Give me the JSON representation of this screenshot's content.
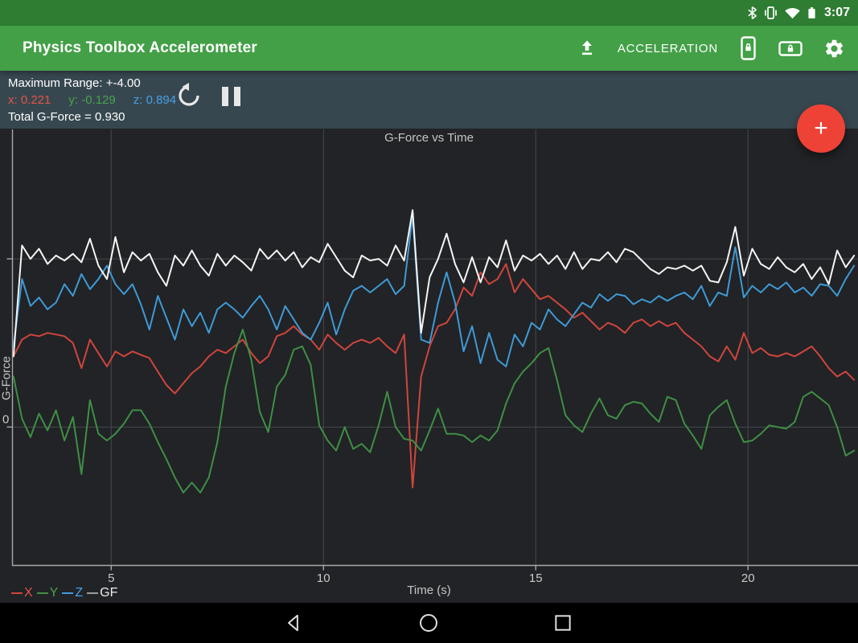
{
  "status_bar": {
    "time": "3:07",
    "icons": [
      "bluetooth-icon",
      "vibrate-icon",
      "wifi-icon",
      "battery-icon"
    ]
  },
  "app_bar": {
    "title": "Physics Toolbox Accelerometer",
    "mode_label": "ACCELERATION",
    "icons": [
      "upload-icon",
      "screen-lock-portrait-icon",
      "screen-lock-landscape-icon",
      "settings-gear-icon"
    ]
  },
  "sensor_bar": {
    "max_range": "Maximum Range: +-4.00",
    "x": "x: 0.221",
    "y": "y: -0.129",
    "z": "z: 0.894",
    "total": "Total G-Force = 0.930",
    "controls": [
      "reset-icon",
      "pause-icon"
    ]
  },
  "fab": {
    "glyph": "+"
  },
  "colors": {
    "status_bar_bg": "#2e7d32",
    "app_bar_bg": "#43a047",
    "sensor_bar_bg": "#37474f",
    "chart_bg": "#212326",
    "fab_bg": "#ee4236",
    "x_text": "#e25549",
    "y_text": "#4aa24e",
    "z_text": "#47a0ea",
    "gridline": "#46494d",
    "axis": "#a8a8a8",
    "tick_text": "#c9c9c9"
  },
  "chart_data": {
    "type": "line",
    "title": "G-Force vs Time",
    "xlabel": "Time (s)",
    "ylabel": "G-Force",
    "xlim": [
      2.675,
      22.59
    ],
    "ylim": [
      -0.823,
      1.77
    ],
    "grid": true,
    "legend_position": "bottom-left",
    "x_ticks": [
      5,
      10,
      15,
      20
    ],
    "x_tick_labels": [
      "5",
      "10",
      "15",
      "20"
    ],
    "y_gridlines": [
      0,
      1
    ],
    "y_tick_labels": [
      {
        "value": 0,
        "label": "0"
      }
    ],
    "series": [
      {
        "name": "X",
        "color": "#d0453c",
        "label_color": "#e25549",
        "t0": 2.7,
        "dt": 0.2,
        "values": [
          0.42,
          0.52,
          0.55,
          0.54,
          0.56,
          0.55,
          0.54,
          0.5,
          0.35,
          0.52,
          0.44,
          0.36,
          0.45,
          0.42,
          0.45,
          0.43,
          0.41,
          0.33,
          0.25,
          0.2,
          0.26,
          0.32,
          0.36,
          0.42,
          0.46,
          0.44,
          0.48,
          0.52,
          0.44,
          0.38,
          0.42,
          0.54,
          0.56,
          0.6,
          0.55,
          0.52,
          0.46,
          0.55,
          0.5,
          0.46,
          0.5,
          0.52,
          0.5,
          0.53,
          0.48,
          0.44,
          0.55,
          -0.36,
          0.3,
          0.48,
          0.6,
          0.62,
          0.7,
          0.83,
          0.78,
          0.92,
          0.85,
          0.88,
          0.97,
          0.8,
          0.88,
          0.82,
          0.76,
          0.78,
          0.74,
          0.7,
          0.65,
          0.68,
          0.63,
          0.58,
          0.62,
          0.6,
          0.56,
          0.62,
          0.64,
          0.6,
          0.63,
          0.6,
          0.62,
          0.56,
          0.52,
          0.48,
          0.42,
          0.39,
          0.48,
          0.4,
          0.56,
          0.44,
          0.47,
          0.43,
          0.42,
          0.44,
          0.42,
          0.45,
          0.48,
          0.42,
          0.35,
          0.3,
          0.33,
          0.28
        ]
      },
      {
        "name": "Y",
        "color": "#3f8f44",
        "label_color": "#4aa24e",
        "t0": 2.7,
        "dt": 0.2,
        "values": [
          0.3,
          0.05,
          -0.06,
          0.08,
          -0.02,
          0.1,
          -0.08,
          0.06,
          -0.28,
          0.16,
          -0.04,
          -0.08,
          -0.04,
          0.02,
          0.1,
          0.1,
          0.02,
          -0.09,
          -0.19,
          -0.3,
          -0.39,
          -0.33,
          -0.39,
          -0.3,
          -0.09,
          0.24,
          0.44,
          0.58,
          0.4,
          0.09,
          -0.03,
          0.24,
          0.31,
          0.46,
          0.48,
          0.37,
          0.01,
          -0.08,
          -0.14,
          0.0,
          -0.13,
          -0.1,
          -0.15,
          0.01,
          0.21,
          0.0,
          -0.07,
          -0.08,
          -0.14,
          -0.02,
          0.11,
          -0.04,
          -0.04,
          -0.05,
          -0.09,
          -0.05,
          -0.08,
          -0.02,
          0.14,
          0.26,
          0.33,
          0.38,
          0.44,
          0.47,
          0.28,
          0.07,
          0.01,
          -0.03,
          0.08,
          0.17,
          0.07,
          0.05,
          0.13,
          0.15,
          0.14,
          0.08,
          0.03,
          0.18,
          0.16,
          0.02,
          -0.05,
          -0.13,
          0.07,
          0.12,
          0.16,
          0.02,
          -0.09,
          -0.08,
          -0.04,
          0.01,
          0.0,
          -0.01,
          0.03,
          0.18,
          0.21,
          0.17,
          0.13,
          0.0,
          -0.17,
          -0.14
        ]
      },
      {
        "name": "Z",
        "color": "#3f9ad6",
        "label_color": "#47a0ea",
        "t0": 2.7,
        "dt": 0.2,
        "values": [
          0.48,
          0.88,
          0.72,
          0.77,
          0.7,
          0.74,
          0.85,
          0.78,
          0.91,
          0.82,
          0.88,
          0.96,
          0.85,
          0.79,
          0.85,
          0.73,
          0.58,
          0.78,
          0.65,
          0.52,
          0.7,
          0.6,
          0.68,
          0.56,
          0.7,
          0.74,
          0.7,
          0.65,
          0.72,
          0.78,
          0.7,
          0.58,
          0.72,
          0.64,
          0.56,
          0.52,
          0.62,
          0.74,
          0.55,
          0.7,
          0.81,
          0.84,
          0.8,
          0.84,
          0.88,
          0.79,
          0.84,
          1.26,
          0.52,
          0.5,
          0.74,
          0.92,
          0.74,
          0.45,
          0.6,
          0.38,
          0.56,
          0.4,
          0.36,
          0.55,
          0.48,
          0.62,
          0.58,
          0.7,
          0.64,
          0.6,
          0.67,
          0.74,
          0.71,
          0.79,
          0.75,
          0.79,
          0.78,
          0.73,
          0.76,
          0.74,
          0.78,
          0.75,
          0.78,
          0.8,
          0.76,
          0.84,
          0.72,
          0.8,
          0.78,
          1.07,
          0.77,
          0.84,
          0.8,
          0.85,
          0.82,
          0.86,
          0.8,
          0.83,
          0.78,
          0.85,
          0.84,
          0.78,
          0.88,
          0.96
        ]
      },
      {
        "name": "GF",
        "color": "#f5f5f5",
        "label_color": "#ececec",
        "dash_color": "#9a9a9a",
        "t0": 2.7,
        "dt": 0.2,
        "values": [
          0.42,
          1.08,
          1.0,
          1.06,
          0.97,
          1.02,
          0.99,
          1.03,
          0.98,
          1.12,
          0.96,
          0.88,
          1.13,
          0.92,
          1.04,
          0.99,
          1.03,
          0.92,
          0.84,
          1.02,
          0.96,
          1.05,
          0.96,
          0.9,
          1.03,
          0.96,
          1.02,
          0.98,
          0.93,
          1.06,
          1.0,
          1.05,
          0.99,
          1.04,
          0.95,
          1.01,
          0.98,
          1.09,
          1.01,
          0.93,
          0.89,
          1.02,
          0.99,
          1.0,
          0.96,
          1.08,
          0.99,
          1.29,
          0.56,
          0.89,
          1.0,
          1.15,
          0.97,
          0.86,
          1.01,
          0.86,
          1.01,
          0.95,
          1.11,
          0.93,
          1.02,
          0.99,
          1.03,
          0.97,
          1.02,
          0.94,
          1.04,
          0.94,
          1.0,
          0.99,
          1.04,
          0.98,
          1.06,
          1.04,
          0.99,
          0.94,
          0.91,
          0.95,
          0.94,
          0.96,
          0.93,
          0.96,
          0.87,
          0.86,
          0.98,
          1.19,
          0.9,
          1.06,
          0.97,
          0.94,
          1.01,
          0.95,
          0.92,
          0.97,
          0.88,
          0.95,
          0.85,
          1.05,
          0.95,
          1.02
        ]
      }
    ]
  },
  "nav_bar": {
    "icons": [
      "back",
      "home",
      "recents"
    ]
  }
}
